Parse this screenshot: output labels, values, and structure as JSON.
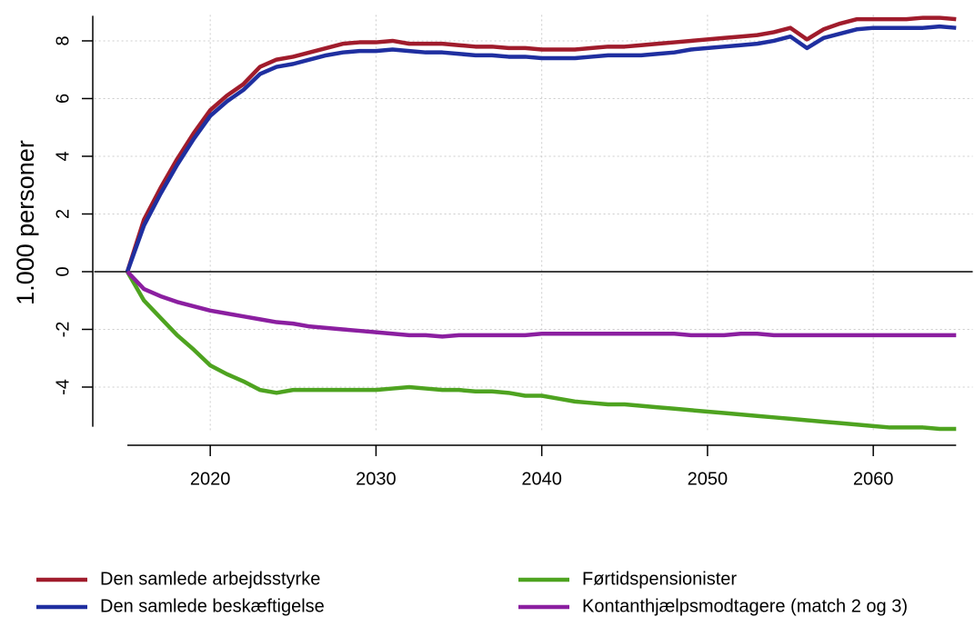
{
  "chart_data": {
    "type": "line",
    "y_label": "1.000 personer",
    "x": [
      2015,
      2016,
      2017,
      2018,
      2019,
      2020,
      2021,
      2022,
      2023,
      2024,
      2025,
      2026,
      2027,
      2028,
      2029,
      2030,
      2031,
      2032,
      2033,
      2034,
      2035,
      2036,
      2037,
      2038,
      2039,
      2040,
      2041,
      2042,
      2043,
      2044,
      2045,
      2046,
      2047,
      2048,
      2049,
      2050,
      2051,
      2052,
      2053,
      2054,
      2055,
      2056,
      2057,
      2058,
      2059,
      2060,
      2061,
      2062,
      2063,
      2064,
      2065
    ],
    "series": [
      {
        "name": "Den samlede arbejdsstyrke",
        "color": "#a01c2c",
        "values": [
          0,
          1.8,
          2.9,
          3.9,
          4.8,
          5.6,
          6.1,
          6.5,
          7.1,
          7.35,
          7.45,
          7.6,
          7.75,
          7.9,
          7.95,
          7.95,
          8.0,
          7.9,
          7.9,
          7.9,
          7.85,
          7.8,
          7.8,
          7.75,
          7.75,
          7.7,
          7.7,
          7.7,
          7.75,
          7.8,
          7.8,
          7.85,
          7.9,
          7.95,
          8.0,
          8.05,
          8.1,
          8.15,
          8.2,
          8.3,
          8.45,
          8.05,
          8.4,
          8.6,
          8.75,
          8.75,
          8.75,
          8.75,
          8.8,
          8.8,
          8.75
        ]
      },
      {
        "name": "Den samlede beskæftigelse",
        "color": "#1f2fa0",
        "values": [
          0,
          1.6,
          2.7,
          3.7,
          4.6,
          5.4,
          5.9,
          6.3,
          6.85,
          7.1,
          7.2,
          7.35,
          7.5,
          7.6,
          7.65,
          7.65,
          7.7,
          7.65,
          7.6,
          7.6,
          7.55,
          7.5,
          7.5,
          7.45,
          7.45,
          7.4,
          7.4,
          7.4,
          7.45,
          7.5,
          7.5,
          7.5,
          7.55,
          7.6,
          7.7,
          7.75,
          7.8,
          7.85,
          7.9,
          8.0,
          8.15,
          7.75,
          8.1,
          8.25,
          8.4,
          8.45,
          8.45,
          8.45,
          8.45,
          8.5,
          8.45
        ]
      },
      {
        "name": "Førtidspensionister",
        "color": "#4ea320",
        "values": [
          0,
          -1.0,
          -1.6,
          -2.2,
          -2.7,
          -3.25,
          -3.55,
          -3.8,
          -4.1,
          -4.2,
          -4.1,
          -4.1,
          -4.1,
          -4.1,
          -4.1,
          -4.1,
          -4.05,
          -4.0,
          -4.05,
          -4.1,
          -4.1,
          -4.15,
          -4.15,
          -4.2,
          -4.3,
          -4.3,
          -4.4,
          -4.5,
          -4.55,
          -4.6,
          -4.6,
          -4.65,
          -4.7,
          -4.75,
          -4.8,
          -4.85,
          -4.9,
          -4.95,
          -5.0,
          -5.05,
          -5.1,
          -5.15,
          -5.2,
          -5.25,
          -5.3,
          -5.35,
          -5.4,
          -5.4,
          -5.4,
          -5.45,
          -5.45
        ]
      },
      {
        "name": "Kontanthjælpsmodtagere (match 2 og 3)",
        "color": "#8b1fa0",
        "values": [
          0,
          -0.6,
          -0.85,
          -1.05,
          -1.2,
          -1.35,
          -1.45,
          -1.55,
          -1.65,
          -1.75,
          -1.8,
          -1.9,
          -1.95,
          -2.0,
          -2.05,
          -2.1,
          -2.15,
          -2.2,
          -2.2,
          -2.25,
          -2.2,
          -2.2,
          -2.2,
          -2.2,
          -2.2,
          -2.15,
          -2.15,
          -2.15,
          -2.15,
          -2.15,
          -2.15,
          -2.15,
          -2.15,
          -2.15,
          -2.2,
          -2.2,
          -2.2,
          -2.15,
          -2.15,
          -2.2,
          -2.2,
          -2.2,
          -2.2,
          -2.2,
          -2.2,
          -2.2,
          -2.2,
          -2.2,
          -2.2,
          -2.2,
          -2.2
        ]
      }
    ],
    "xlim": [
      2013,
      2066
    ],
    "ylim": [
      -5.5,
      8.9
    ],
    "xticks": [
      2020,
      2030,
      2040,
      2050,
      2060
    ],
    "yticks": [
      -4,
      -2,
      0,
      2,
      4,
      6,
      8
    ],
    "grid": true,
    "zero_line": true,
    "legend": "bottom"
  }
}
